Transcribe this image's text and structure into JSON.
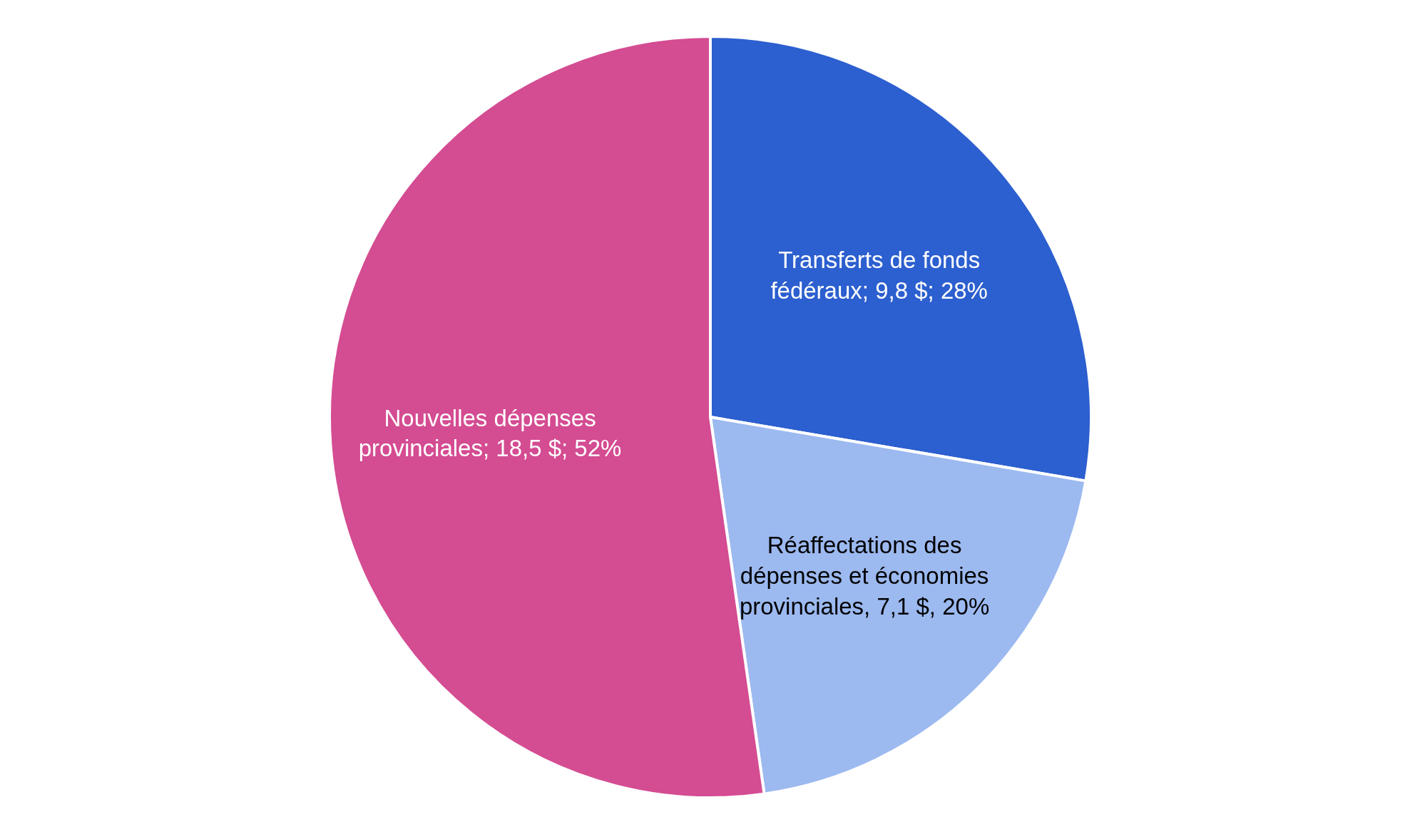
{
  "chart_data": {
    "type": "pie",
    "categories": [
      "Transferts de fonds fédéraux",
      "Réaffectations des dépenses et économies provinciales",
      "Nouvelles dépenses provinciales"
    ],
    "values": [
      9.8,
      7.1,
      18.5
    ],
    "value_labels": [
      "9,8 $; 28%",
      "7,1 $, 20%",
      "18,5 $; 52%"
    ],
    "colors": [
      "#2c5fcf",
      "#9cb9f0",
      "#d44c92"
    ],
    "legend": false
  }
}
